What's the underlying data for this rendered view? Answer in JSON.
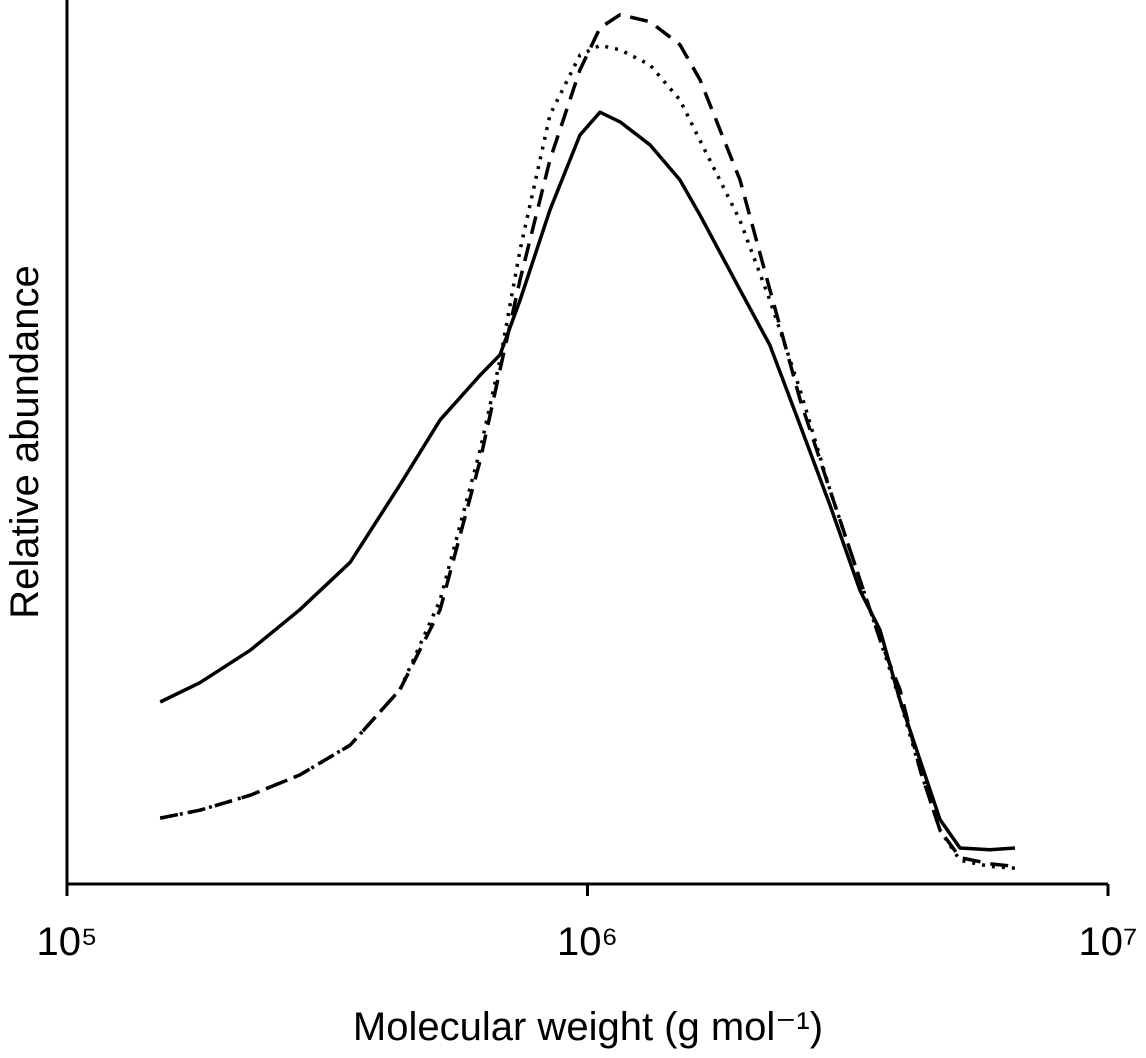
{
  "chart_data": {
    "type": "line",
    "xlabel": "Molecular weight (g mol⁻¹)",
    "ylabel": "Relative abundance",
    "xscale": "log",
    "grid": false,
    "xlim": [
      100000,
      10000000
    ],
    "xticks": [
      {
        "value": 100000,
        "label": "10⁵"
      },
      {
        "value": 1000000,
        "label": "10⁶"
      },
      {
        "value": 10000000,
        "label": "10⁷"
      }
    ],
    "ylim": [
      0,
      100
    ],
    "x": [
      151000,
      180000,
      225000,
      280000,
      350000,
      436000,
      521000,
      622000,
      679000,
      742000,
      847000,
      967000,
      1057000,
      1155000,
      1318000,
      1505000,
      1645000,
      1963000,
      2241000,
      2561000,
      2924000,
      3338000,
      3648000,
      3985000,
      4354000,
      4757000,
      5197000,
      5934000,
      6627000
    ],
    "series": [
      {
        "color": "#000000",
        "style": "solid",
        "values": [
          20.7,
          22.9,
          26.6,
          31.2,
          36.6,
          45.4,
          52.8,
          57.9,
          60.2,
          66.4,
          76.7,
          85.2,
          87.8,
          86.7,
          84.1,
          80.1,
          76.1,
          67.6,
          61.3,
          52.2,
          43.1,
          33.4,
          28.9,
          20.9,
          14.1,
          7.3,
          4.1,
          3.9,
          4.1
        ]
      },
      {
        "color": "#000000",
        "style": "dashed",
        "values": [
          7.5,
          8.4,
          10.1,
          12.4,
          15.8,
          22.1,
          31.2,
          48.2,
          58.5,
          68.7,
          82.4,
          92.6,
          97.4,
          98.9,
          98.1,
          95.5,
          91.5,
          80.1,
          67.6,
          55.1,
          44.8,
          34.6,
          27.8,
          22.1,
          13.0,
          6.1,
          3.0,
          2.3,
          2.0
        ]
      },
      {
        "color": "#000000",
        "style": "dotted",
        "values": [
          7.5,
          8.4,
          10.1,
          12.4,
          15.8,
          22.1,
          32.3,
          49.4,
          59.6,
          72.1,
          87.5,
          94.3,
          95.4,
          94.9,
          93.2,
          89.2,
          84.6,
          75.5,
          66.4,
          56.2,
          44.8,
          34.6,
          27.8,
          20.9,
          13.0,
          6.1,
          2.7,
          2.0,
          1.8
        ]
      }
    ]
  }
}
